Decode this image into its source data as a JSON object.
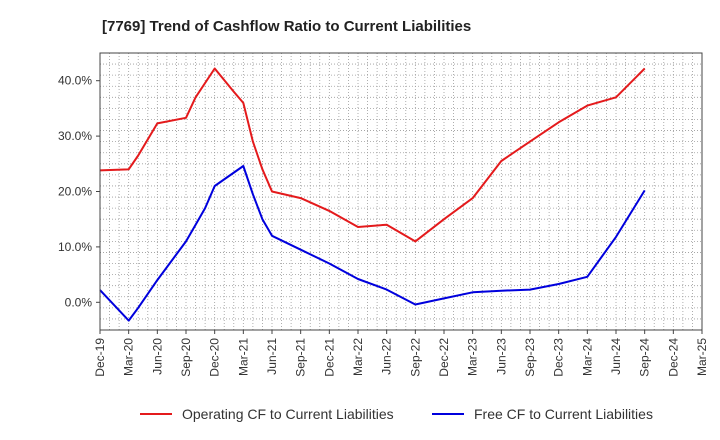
{
  "title": "[7769]  Trend of Cashflow Ratio to Current Liabilities",
  "chart_data": {
    "type": "line",
    "x_ticks": [
      "Dec-19",
      "Mar-20",
      "Jun-20",
      "Sep-20",
      "Dec-20",
      "Mar-21",
      "Jun-21",
      "Sep-21",
      "Dec-21",
      "Mar-22",
      "Jun-22",
      "Sep-22",
      "Dec-22",
      "Mar-23",
      "Jun-23",
      "Sep-23",
      "Dec-23",
      "Mar-24",
      "Jun-24",
      "Sep-24",
      "Dec-24",
      "Mar-25"
    ],
    "y_ticks": [
      "0.0%",
      "10.0%",
      "20.0%",
      "30.0%",
      "40.0%"
    ],
    "ylim": [
      -5,
      45
    ],
    "grid": true,
    "legend_placement": "bottom",
    "series": [
      {
        "name": "Operating CF to Current Liabilities",
        "color": "#e41a1c",
        "points": [
          [
            "Dec-19",
            23.8
          ],
          [
            "Mar-20",
            24.0
          ],
          [
            "Apr-20",
            26.5
          ],
          [
            "Jun-20",
            32.3
          ],
          [
            "Sep-20",
            33.3
          ],
          [
            "Oct-20",
            37.0
          ],
          [
            "Dec-20",
            42.2
          ],
          [
            "Feb-21",
            38.0
          ],
          [
            "Mar-21",
            36.0
          ],
          [
            "Apr-21",
            29.0
          ],
          [
            "May-21",
            24.0
          ],
          [
            "Jun-21",
            20.0
          ],
          [
            "Sep-21",
            18.8
          ],
          [
            "Dec-21",
            16.5
          ],
          [
            "Mar-22",
            13.6
          ],
          [
            "Jun-22",
            14.0
          ],
          [
            "Sep-22",
            11.0
          ],
          [
            "Dec-22",
            15.0
          ],
          [
            "Mar-23",
            18.8
          ],
          [
            "Jun-23",
            25.5
          ],
          [
            "Sep-23",
            29.0
          ],
          [
            "Dec-23",
            32.5
          ],
          [
            "Mar-24",
            35.5
          ],
          [
            "Jun-24",
            37.0
          ],
          [
            "Sep-24",
            42.2
          ]
        ]
      },
      {
        "name": "Free CF to Current Liabilities",
        "color": "#0000dd",
        "points": [
          [
            "Dec-19",
            2.2
          ],
          [
            "Mar-20",
            -3.3
          ],
          [
            "Apr-20",
            -1.0
          ],
          [
            "Jun-20",
            4.0
          ],
          [
            "Sep-20",
            11.0
          ],
          [
            "Oct-20",
            14.0
          ],
          [
            "Nov-20",
            17.0
          ],
          [
            "Dec-20",
            21.0
          ],
          [
            "Mar-21",
            24.6
          ],
          [
            "Apr-21",
            19.5
          ],
          [
            "May-21",
            15.0
          ],
          [
            "Jun-21",
            12.0
          ],
          [
            "Sep-21",
            9.5
          ],
          [
            "Dec-21",
            7.0
          ],
          [
            "Mar-22",
            4.2
          ],
          [
            "Jun-22",
            2.3
          ],
          [
            "Sep-22",
            -0.4
          ],
          [
            "Dec-22",
            0.7
          ],
          [
            "Mar-23",
            1.8
          ],
          [
            "Jun-23",
            2.1
          ],
          [
            "Sep-23",
            2.3
          ],
          [
            "Dec-23",
            3.3
          ],
          [
            "Mar-24",
            4.6
          ],
          [
            "Jun-24",
            11.8
          ],
          [
            "Sep-24",
            20.2
          ]
        ]
      }
    ]
  }
}
